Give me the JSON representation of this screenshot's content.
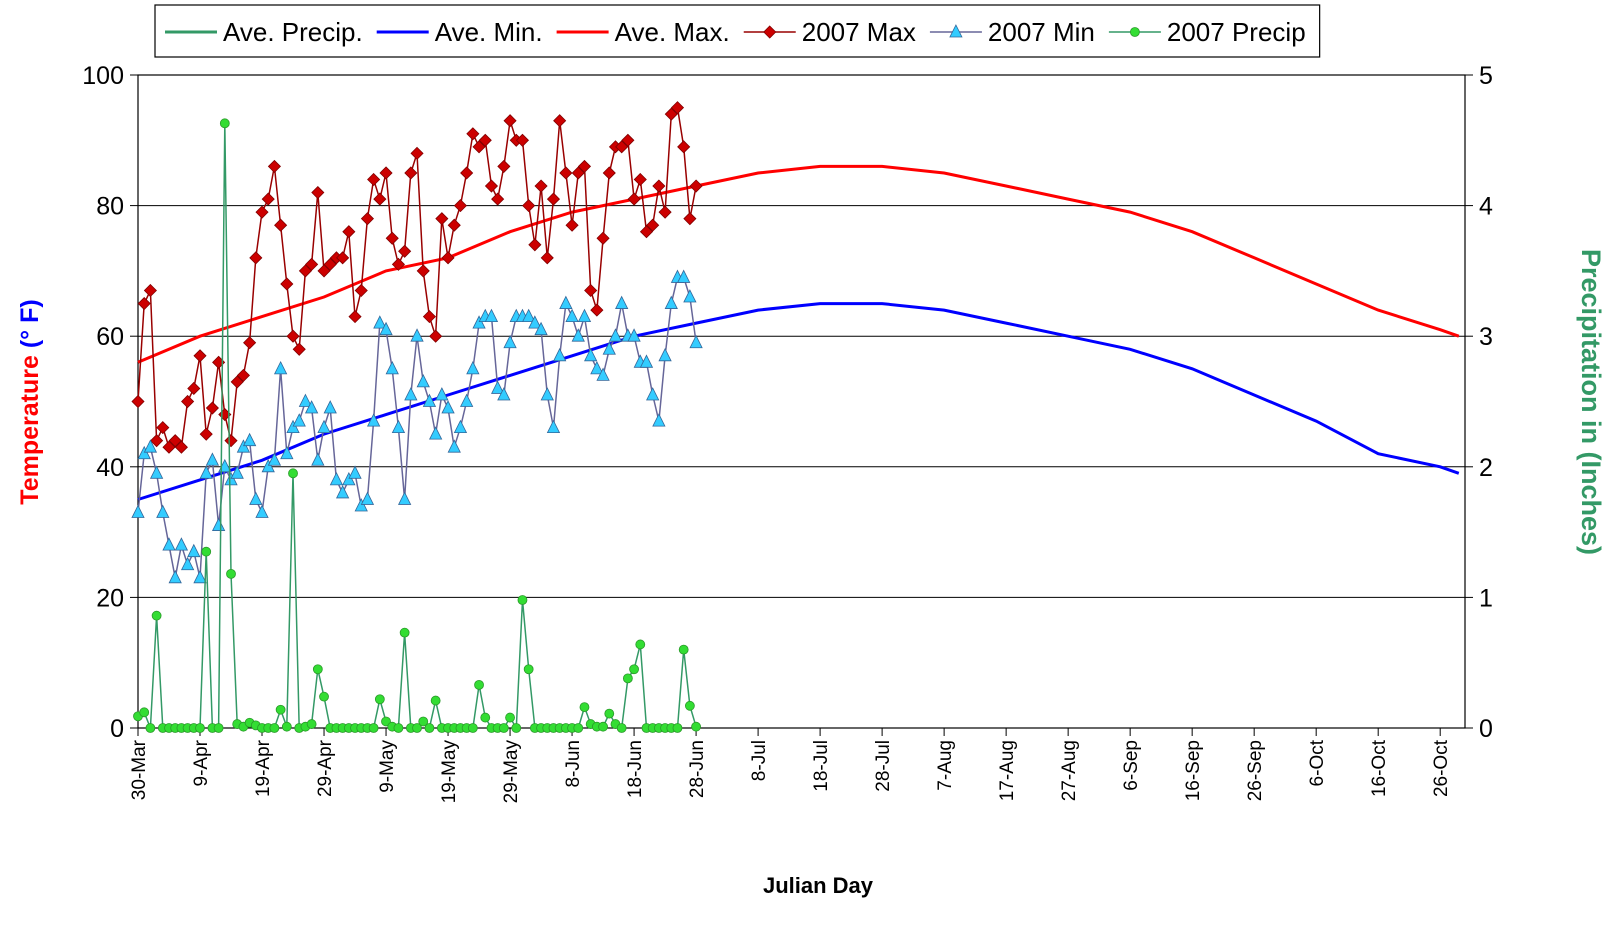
{
  "chart_data": {
    "type": "line",
    "xlabel": "Julian Day",
    "ylabel": [
      "Temperature",
      "(° F)"
    ],
    "y2label": "Precipitation in (Inches)",
    "xlim": [
      89,
      303
    ],
    "xticks": [
      {
        "value": 89,
        "label": "30-Mar"
      },
      {
        "value": 99,
        "label": "9-Apr"
      },
      {
        "value": 109,
        "label": "19-Apr"
      },
      {
        "value": 119,
        "label": "29-Apr"
      },
      {
        "value": 129,
        "label": "9-May"
      },
      {
        "value": 139,
        "label": "19-May"
      },
      {
        "value": 149,
        "label": "29-May"
      },
      {
        "value": 159,
        "label": "8-Jun"
      },
      {
        "value": 169,
        "label": "18-Jun"
      },
      {
        "value": 179,
        "label": "28-Jun"
      },
      {
        "value": 189,
        "label": "8-Jul"
      },
      {
        "value": 199,
        "label": "18-Jul"
      },
      {
        "value": 209,
        "label": "28-Jul"
      },
      {
        "value": 219,
        "label": "7-Aug"
      },
      {
        "value": 229,
        "label": "17-Aug"
      },
      {
        "value": 239,
        "label": "27-Aug"
      },
      {
        "value": 249,
        "label": "6-Sep"
      },
      {
        "value": 259,
        "label": "16-Sep"
      },
      {
        "value": 269,
        "label": "26-Sep"
      },
      {
        "value": 279,
        "label": "6-Oct"
      },
      {
        "value": 289,
        "label": "16-Oct"
      },
      {
        "value": 299,
        "label": "26-Oct"
      }
    ],
    "ylim": [
      0,
      100
    ],
    "yticks": [
      0,
      20,
      40,
      60,
      80,
      100
    ],
    "y2lim": [
      0,
      5
    ],
    "y2ticks": [
      0,
      1,
      2,
      3,
      4,
      5
    ],
    "grid": true,
    "legend": "top",
    "series": [
      {
        "name": "Ave. Precip.",
        "color": "#339966",
        "axis": "y2",
        "x": [],
        "values": []
      },
      {
        "name": "Ave. Min.",
        "color": "#0000ff",
        "x": [
          89,
          99,
          109,
          119,
          129,
          139,
          149,
          159,
          169,
          179,
          189,
          199,
          209,
          219,
          229,
          239,
          249,
          259,
          269,
          279,
          289,
          299,
          302
        ],
        "values": [
          35,
          38,
          41,
          45,
          48,
          51,
          54,
          57,
          60,
          62,
          64,
          65,
          65,
          64,
          62,
          60,
          58,
          55,
          51,
          47,
          42,
          40,
          39
        ]
      },
      {
        "name": "Ave. Max.",
        "color": "#ff0000",
        "x": [
          89,
          99,
          109,
          119,
          129,
          139,
          149,
          159,
          169,
          179,
          189,
          199,
          209,
          219,
          229,
          239,
          249,
          259,
          269,
          279,
          289,
          299,
          302
        ],
        "values": [
          56,
          60,
          63,
          66,
          70,
          72,
          76,
          79,
          81,
          83,
          85,
          86,
          86,
          85,
          83,
          81,
          79,
          76,
          72,
          68,
          64,
          61,
          60
        ]
      },
      {
        "name": "2007 Max",
        "color": "#990000",
        "marker": "diamond",
        "marker_color": "#cc0000",
        "x": [
          89,
          90,
          91,
          92,
          93,
          94,
          95,
          96,
          97,
          98,
          99,
          100,
          101,
          102,
          103,
          104,
          105,
          106,
          107,
          108,
          109,
          110,
          111,
          112,
          113,
          114,
          115,
          116,
          117,
          118,
          119,
          120,
          121,
          122,
          123,
          124,
          125,
          126,
          127,
          128,
          129,
          130,
          131,
          132,
          133,
          134,
          135,
          136,
          137,
          138,
          139,
          140,
          141,
          142,
          143,
          144,
          145,
          146,
          147,
          148,
          149,
          150,
          151,
          152,
          153,
          154,
          155,
          156,
          157,
          158,
          159,
          160,
          161,
          162,
          163,
          164,
          165,
          166,
          167,
          168,
          169,
          170,
          171,
          172,
          173,
          174,
          175,
          176,
          177,
          178,
          179
        ],
        "values": [
          50,
          65,
          67,
          44,
          46,
          43,
          44,
          43,
          50,
          52,
          57,
          45,
          49,
          56,
          48,
          44,
          53,
          54,
          59,
          72,
          79,
          81,
          86,
          77,
          68,
          60,
          58,
          70,
          71,
          82,
          70,
          71,
          72,
          72,
          76,
          63,
          67,
          78,
          84,
          81,
          85,
          75,
          71,
          73,
          85,
          88,
          70,
          63,
          60,
          78,
          72,
          77,
          80,
          85,
          91,
          89,
          90,
          83,
          81,
          86,
          93,
          90,
          90,
          80,
          74,
          83,
          72,
          81,
          93,
          85,
          77,
          85,
          86,
          67,
          64,
          75,
          85,
          89,
          89,
          90,
          81,
          84,
          76,
          77,
          83,
          79,
          94,
          95,
          89,
          78,
          83
        ]
      },
      {
        "name": "2007 Min",
        "color": "#666699",
        "marker": "triangle",
        "marker_color": "#33ccff",
        "x": [
          89,
          90,
          91,
          92,
          93,
          94,
          95,
          96,
          97,
          98,
          99,
          100,
          101,
          102,
          103,
          104,
          105,
          106,
          107,
          108,
          109,
          110,
          111,
          112,
          113,
          114,
          115,
          116,
          117,
          118,
          119,
          120,
          121,
          122,
          123,
          124,
          125,
          126,
          127,
          128,
          129,
          130,
          131,
          132,
          133,
          134,
          135,
          136,
          137,
          138,
          139,
          140,
          141,
          142,
          143,
          144,
          145,
          146,
          147,
          148,
          149,
          150,
          151,
          152,
          153,
          154,
          155,
          156,
          157,
          158,
          159,
          160,
          161,
          162,
          163,
          164,
          165,
          166,
          167,
          168,
          169,
          170,
          171,
          172,
          173,
          174,
          175,
          176,
          177,
          178,
          179
        ],
        "values": [
          33,
          42,
          43,
          39,
          33,
          28,
          23,
          28,
          25,
          27,
          23,
          39,
          41,
          31,
          40,
          38,
          39,
          43,
          44,
          35,
          33,
          40,
          41,
          55,
          42,
          46,
          47,
          50,
          49,
          41,
          46,
          49,
          38,
          36,
          38,
          39,
          34,
          35,
          47,
          62,
          61,
          55,
          46,
          35,
          51,
          60,
          53,
          50,
          45,
          51,
          49,
          43,
          46,
          50,
          55,
          62,
          63,
          63,
          52,
          51,
          59,
          63,
          63,
          63,
          62,
          61,
          51,
          46,
          57,
          65,
          63,
          60,
          63,
          57,
          55,
          54,
          58,
          60,
          65,
          60,
          60,
          56,
          56,
          51,
          47,
          57,
          65,
          69,
          69,
          66,
          59
        ]
      },
      {
        "name": "2007 Precip",
        "color": "#339966",
        "axis": "y2",
        "marker": "circle",
        "marker_color": "#33dd33",
        "x": [
          89,
          90,
          91,
          92,
          93,
          94,
          95,
          96,
          97,
          98,
          99,
          100,
          101,
          102,
          103,
          104,
          105,
          106,
          107,
          108,
          109,
          110,
          111,
          112,
          113,
          114,
          115,
          116,
          117,
          118,
          119,
          120,
          121,
          122,
          123,
          124,
          125,
          126,
          127,
          128,
          129,
          130,
          131,
          132,
          133,
          134,
          135,
          136,
          137,
          138,
          139,
          140,
          141,
          142,
          143,
          144,
          145,
          146,
          147,
          148,
          149,
          150,
          151,
          152,
          153,
          154,
          155,
          156,
          157,
          158,
          159,
          160,
          161,
          162,
          163,
          164,
          165,
          166,
          167,
          168,
          169,
          170,
          171,
          172,
          173,
          174,
          175,
          176,
          177,
          178,
          179
        ],
        "values": [
          0.09,
          0.12,
          0,
          0.86,
          0,
          0,
          0,
          0,
          0,
          0,
          0,
          1.35,
          0,
          0,
          4.63,
          1.18,
          0.03,
          0.01,
          0.04,
          0.02,
          0,
          0,
          0,
          0.14,
          0.01,
          1.95,
          0,
          0.01,
          0.03,
          0.45,
          0.24,
          0,
          0,
          0,
          0,
          0,
          0,
          0,
          0,
          0.22,
          0.05,
          0.01,
          0,
          0.73,
          0,
          0,
          0.05,
          0,
          0.21,
          0,
          0,
          0,
          0,
          0,
          0,
          0.33,
          0.08,
          0,
          0,
          0,
          0.08,
          0,
          0.98,
          0.45,
          0,
          0,
          0,
          0,
          0,
          0,
          0,
          0,
          0.16,
          0.03,
          0.01,
          0.01,
          0.11,
          0.03,
          0,
          0.38,
          0.45,
          0.64,
          0,
          0,
          0,
          0,
          0,
          0,
          0.6,
          0.17,
          0.01
        ]
      }
    ]
  }
}
